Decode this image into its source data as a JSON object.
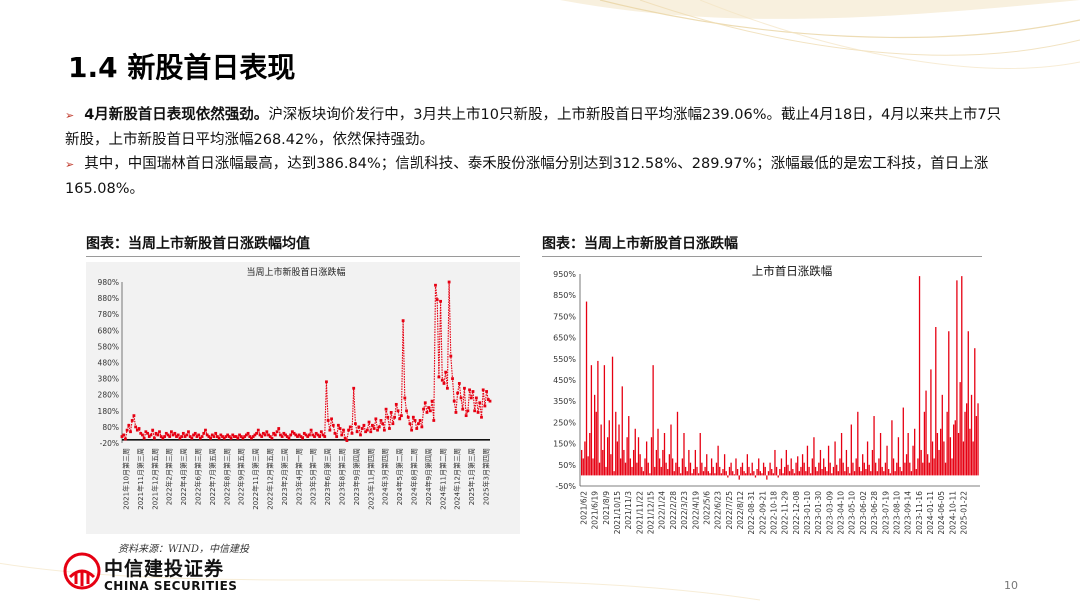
{
  "slide": {
    "title": "1.4 新股首日表现",
    "bullets": [
      {
        "bold": "4月新股首日表现依然强劲。",
        "text": "沪深板块询价发行中，3月共上市10只新股，上市新股首日平均涨幅239.06%。截止4月18日，4月以来共上市7只新股，上市新股首日平均涨幅268.42%，依然保持强劲。"
      },
      {
        "bold": "",
        "text": "其中，中国瑞林首日涨幅最高，达到386.84%；信凯科技、泰禾股份涨幅分别达到312.58%、289.97%；涨幅最低的是宏工科技，首日上涨165.08%。"
      }
    ],
    "left_caption": "图表：当周上市新股首日涨跌幅均值",
    "right_caption": "图表：当周上市新股首日涨跌幅",
    "source": "资料来源：WIND，中信建投",
    "logo_cn": "中信建投证券",
    "logo_en": "CHINA SECURITIES",
    "page_number": "10",
    "accent_color": "#e60012"
  },
  "chart_data": [
    {
      "type": "line",
      "title": "当周上市新股首日涨跌幅",
      "series_color": "#e60012",
      "ylim": [
        -20,
        980
      ],
      "yticks": [
        -20,
        80,
        180,
        280,
        380,
        480,
        580,
        680,
        780,
        880,
        980
      ],
      "ytick_labels": [
        "-20%",
        "80%",
        "180%",
        "280%",
        "380%",
        "480%",
        "580%",
        "680%",
        "780%",
        "880%",
        "980%"
      ],
      "xtick_labels": [
        "2021年10月第三周",
        "2021年11月第三周",
        "2021年12月第五周",
        "2022年2月第三周",
        "2022年4月第三周",
        "2022年6月第三周",
        "2022年7月第五周",
        "2022年8月第三周",
        "2022年9月第五周",
        "2022年11月第三周",
        "2022年12月第五周",
        "2023年2月第三周",
        "2023年4月第一周",
        "2023年5月第一周",
        "2023年6月第三周",
        "2023年8月第三周",
        "2023年9月第四周",
        "2023年11月第四周",
        "2024年3月第四周",
        "2024年5月第二周",
        "2024年8月第二周",
        "2024年9月第四周",
        "2024年11月第二周",
        "2024年12月第三周",
        "2025年1月第三周",
        "2025年3月第四周"
      ],
      "values": [
        20,
        30,
        5,
        60,
        90,
        50,
        120,
        150,
        80,
        60,
        70,
        40,
        30,
        10,
        50,
        40,
        20,
        30,
        60,
        10,
        40,
        30,
        50,
        20,
        10,
        20,
        40,
        30,
        20,
        50,
        30,
        40,
        20,
        30,
        10,
        20,
        40,
        20,
        30,
        50,
        20,
        10,
        30,
        40,
        20,
        30,
        10,
        20,
        40,
        60,
        30,
        20,
        10,
        30,
        20,
        40,
        20,
        10,
        30,
        20,
        10,
        20,
        30,
        20,
        10,
        30,
        20,
        20,
        10,
        30,
        20,
        10,
        20,
        30,
        40,
        20,
        10,
        20,
        30,
        40,
        60,
        30,
        20,
        40,
        30,
        50,
        30,
        20,
        10,
        40,
        30,
        50,
        70,
        30,
        20,
        40,
        30,
        20,
        10,
        30,
        50,
        40,
        30,
        20,
        30,
        20,
        10,
        40,
        30,
        20,
        30,
        60,
        30,
        20,
        40,
        30,
        20,
        50,
        30,
        20,
        360,
        120,
        60,
        130,
        90,
        40,
        20,
        90,
        70,
        30,
        60,
        10,
        -5,
        60,
        80,
        40,
        320,
        100,
        50,
        80,
        30,
        70,
        90,
        50,
        60,
        110,
        50,
        90,
        70,
        130,
        60,
        80,
        120,
        100,
        60,
        190,
        140,
        70,
        170,
        100,
        140,
        220,
        180,
        130,
        150,
        740,
        260,
        180,
        140,
        100,
        60,
        140,
        120,
        70,
        100,
        120,
        80,
        190,
        230,
        170,
        200,
        180,
        240,
        120,
        960,
        870,
        390,
        860,
        370,
        350,
        420,
        320,
        980,
        520,
        380,
        240,
        170,
        290,
        350,
        260,
        190,
        320,
        150,
        180,
        310,
        260,
        300,
        180,
        260,
        170,
        230,
        140,
        310,
        210,
        300,
        250,
        240
      ]
    },
    {
      "type": "bar",
      "title": "上市首日涨跌幅",
      "series_color": "#e60012",
      "ylim": [
        -50,
        950
      ],
      "yticks": [
        -50,
        50,
        150,
        250,
        350,
        450,
        550,
        650,
        750,
        850,
        950
      ],
      "ytick_labels": [
        "-50%",
        "50%",
        "150%",
        "250%",
        "350%",
        "450%",
        "550%",
        "650%",
        "750%",
        "850%",
        "950%"
      ],
      "xtick_labels": [
        "2021/6/2",
        "2021/6/19",
        "2021/8/9",
        "2021/10/15",
        "2021/11/3",
        "2021/11/22",
        "2021/12/15",
        "2022/1/24",
        "2022/2/28",
        "2022/3/23",
        "2022/4/19",
        "2022/5/6",
        "2022/6/23",
        "2022/7/25",
        "2022/8/12",
        "2022-08-31",
        "2022-09-21",
        "2022-10-18",
        "2022-11-29",
        "2022-12-08",
        "2023-01-10",
        "2023-01-30",
        "2023-03-09",
        "2023-04-10",
        "2023-05-10",
        "2023-06-02",
        "2023-06-28",
        "2023-07-19",
        "2023-08-10",
        "2023-09-14",
        "2023-11-16",
        "2024-01-11",
        "2024-06-05",
        "2024-10-11",
        "2025-01-22"
      ],
      "values": [
        120,
        80,
        160,
        820,
        90,
        200,
        520,
        80,
        380,
        300,
        540,
        60,
        240,
        120,
        520,
        40,
        180,
        260,
        100,
        560,
        20,
        300,
        160,
        240,
        80,
        420,
        120,
        60,
        180,
        280,
        80,
        40,
        120,
        220,
        60,
        180,
        100,
        40,
        20,
        80,
        160,
        60,
        10,
        180,
        520,
        40,
        120,
        220,
        80,
        40,
        120,
        200,
        60,
        30,
        100,
        240,
        80,
        20,
        60,
        300,
        40,
        10,
        80,
        200,
        40,
        20,
        120,
        60,
        10,
        30,
        120,
        40,
        10,
        200,
        60,
        20,
        40,
        100,
        20,
        10,
        80,
        40,
        10,
        60,
        140,
        40,
        10,
        30,
        100,
        20,
        -10,
        40,
        60,
        20,
        5,
        80,
        30,
        -20,
        40,
        60,
        20,
        10,
        100,
        40,
        10,
        60,
        20,
        -10,
        30,
        80,
        20,
        10,
        60,
        40,
        -20,
        20,
        60,
        30,
        10,
        120,
        40,
        -10,
        30,
        80,
        10,
        40,
        120,
        50,
        20,
        80,
        30,
        10,
        60,
        90,
        20,
        40,
        100,
        60,
        20,
        140,
        40,
        10,
        80,
        180,
        40,
        20,
        60,
        120,
        30,
        80,
        40,
        20,
        140,
        60,
        10,
        40,
        160,
        50,
        20,
        80,
        200,
        60,
        20,
        120,
        40,
        10,
        240,
        60,
        20,
        80,
        300,
        40,
        20,
        100,
        60,
        30,
        160,
        50,
        20,
        120,
        280,
        60,
        20,
        80,
        200,
        40,
        20,
        60,
        140,
        30,
        10,
        260,
        80,
        20,
        60,
        180,
        40,
        20,
        320,
        60,
        100,
        200,
        60,
        20,
        140,
        220,
        30,
        80,
        940,
        120,
        60,
        300,
        400,
        100,
        60,
        500,
        160,
        80,
        700,
        200,
        120,
        220,
        380,
        160,
        60,
        300,
        680,
        180,
        80,
        240,
        260,
        920,
        200,
        440,
        940,
        160,
        300,
        340,
        680,
        220,
        380,
        160,
        600,
        280,
        340
      ]
    }
  ]
}
